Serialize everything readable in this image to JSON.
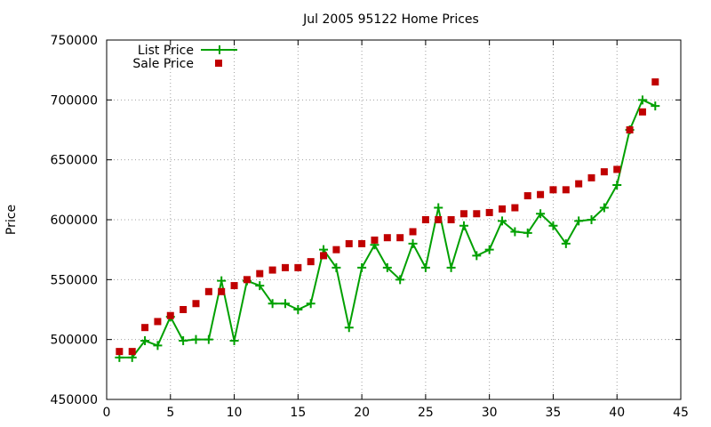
{
  "chart_data": {
    "type": "line",
    "title": "Jul 2005 95122 Home Prices",
    "xlabel": "",
    "ylabel": "Price",
    "xlim": [
      0,
      45
    ],
    "ylim": [
      450000,
      750000
    ],
    "x_ticks": [
      0,
      5,
      10,
      15,
      20,
      25,
      30,
      35,
      40,
      45
    ],
    "y_ticks": [
      450000,
      500000,
      550000,
      600000,
      650000,
      700000,
      750000
    ],
    "x_tick_labels": [
      "0",
      "5",
      "10",
      "15",
      "20",
      "25",
      "30",
      "35",
      "40",
      "45"
    ],
    "y_tick_labels": [
      "450000",
      "500000",
      "550000",
      "600000",
      "650000",
      "700000",
      "750000"
    ],
    "grid": true,
    "legend_position": "top-left",
    "series": [
      {
        "name": "List Price",
        "style": "linespoints",
        "marker": "plus",
        "color": "#00a000",
        "x": [
          1,
          2,
          3,
          4,
          5,
          6,
          7,
          8,
          9,
          10,
          11,
          12,
          13,
          14,
          15,
          16,
          17,
          18,
          19,
          20,
          21,
          22,
          23,
          24,
          25,
          26,
          27,
          28,
          29,
          30,
          31,
          32,
          33,
          34,
          35,
          36,
          37,
          38,
          39,
          40,
          41,
          42,
          43
        ],
        "values": [
          485000,
          485000,
          499000,
          495000,
          519000,
          499000,
          500000,
          500000,
          549000,
          499000,
          549000,
          545000,
          530000,
          530000,
          525000,
          530000,
          575000,
          560000,
          510000,
          560000,
          579000,
          560000,
          550000,
          580000,
          560000,
          610000,
          560000,
          595000,
          570000,
          575000,
          599000,
          590000,
          589000,
          605000,
          595000,
          580000,
          599000,
          600000,
          610000,
          629000,
          675000,
          700000,
          695000
        ]
      },
      {
        "name": "Sale Price",
        "style": "points",
        "marker": "square",
        "color": "#c00000",
        "x": [
          1,
          2,
          3,
          4,
          5,
          6,
          7,
          8,
          9,
          10,
          11,
          12,
          13,
          14,
          15,
          16,
          17,
          18,
          19,
          20,
          21,
          22,
          23,
          24,
          25,
          26,
          27,
          28,
          29,
          30,
          31,
          32,
          33,
          34,
          35,
          36,
          37,
          38,
          39,
          40,
          41,
          42,
          43
        ],
        "values": [
          490000,
          490000,
          510000,
          515000,
          520000,
          525000,
          530000,
          540000,
          540000,
          545000,
          550000,
          555000,
          558000,
          560000,
          560000,
          565000,
          570000,
          575000,
          580000,
          580000,
          583000,
          585000,
          585000,
          590000,
          600000,
          600000,
          600000,
          605000,
          605000,
          606000,
          609000,
          610000,
          620000,
          621000,
          625000,
          625000,
          630000,
          635000,
          640000,
          642000,
          675000,
          690000,
          715000
        ]
      }
    ]
  }
}
